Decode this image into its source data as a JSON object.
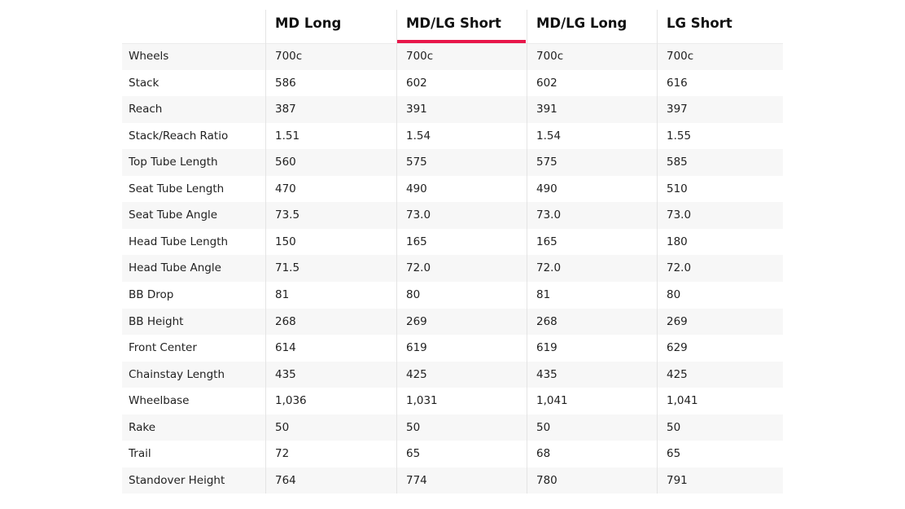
{
  "table": {
    "header": [
      "MD Long",
      "MD/LG Short",
      "MD/LG Long",
      "LG Short"
    ],
    "rows": [
      [
        "Wheels",
        "700c",
        "700c",
        "700c",
        "700c"
      ],
      [
        "Stack",
        "586",
        "602",
        "602",
        "616"
      ],
      [
        "Reach",
        "387",
        "391",
        "391",
        "397"
      ],
      [
        "Stack/Reach Ratio",
        "1.51",
        "1.54",
        "1.54",
        "1.55"
      ],
      [
        "Top Tube Length",
        "560",
        "575",
        "575",
        "585"
      ],
      [
        "Seat Tube Length",
        "470",
        "490",
        "490",
        "510"
      ],
      [
        "Seat Tube Angle",
        "73.5",
        "73.0",
        "73.0",
        "73.0"
      ],
      [
        "Head Tube Length",
        "150",
        "165",
        "165",
        "180"
      ],
      [
        "Head Tube Angle",
        "71.5",
        "72.0",
        "72.0",
        "72.0"
      ],
      [
        "BB Drop",
        "81",
        "80",
        "81",
        "80"
      ],
      [
        "BB Height",
        "268",
        "269",
        "268",
        "269"
      ],
      [
        "Front Center",
        "614",
        "619",
        "619",
        "629"
      ],
      [
        "Chainstay Length",
        "435",
        "425",
        "435",
        "425"
      ],
      [
        "Wheelbase",
        "1,036",
        "1,031",
        "1,041",
        "1,041"
      ],
      [
        "Rake",
        "50",
        "50",
        "50",
        "50"
      ],
      [
        "Trail",
        "72",
        "65",
        "68",
        "65"
      ],
      [
        "Standover Height",
        "764",
        "774",
        "780",
        "791"
      ]
    ]
  }
}
